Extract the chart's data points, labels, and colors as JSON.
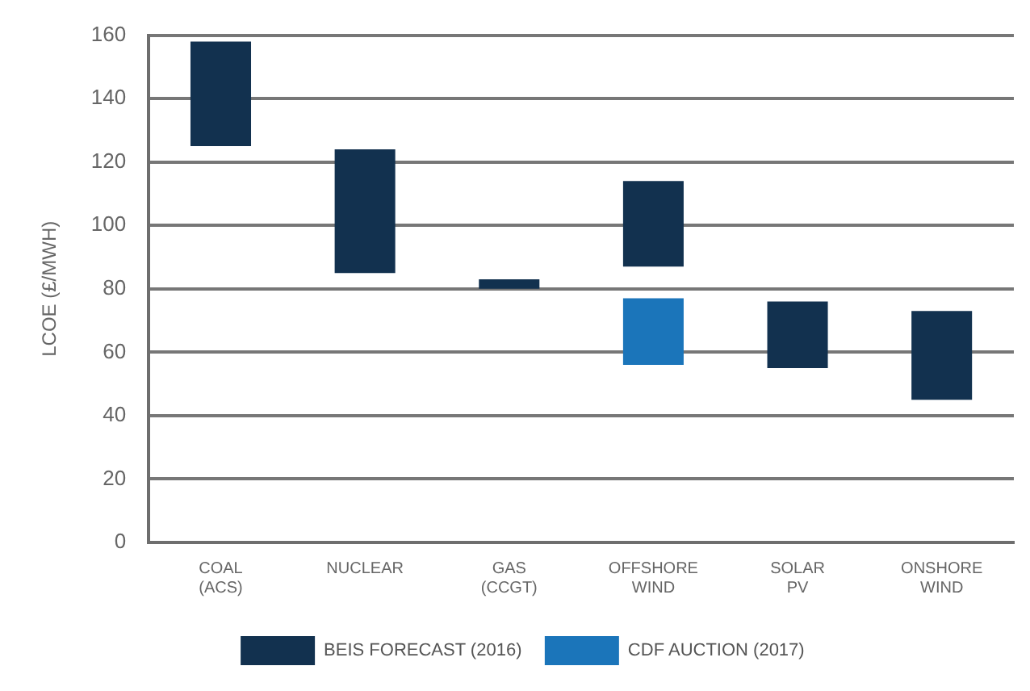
{
  "chart_data": {
    "type": "bar",
    "ylabel": "LCOE (£/MWH)",
    "categories": [
      "COAL (ACS)",
      "NUCLEAR",
      "GAS (CCGT)",
      "OFFSHORE WIND",
      "SOLAR PV",
      "ONSHORE WIND"
    ],
    "series": [
      {
        "name": "BEIS FORECAST (2016)",
        "color": "#12314f",
        "base": [
          125,
          85,
          80,
          87,
          55,
          45
        ],
        "values": [
          33,
          39,
          3,
          27,
          21,
          28
        ]
      },
      {
        "name": "CDF AUCTION (2017)",
        "color": "#1b75ba",
        "base": [
          null,
          null,
          null,
          56,
          null,
          null
        ],
        "values": [
          null,
          null,
          null,
          21,
          null,
          null
        ]
      }
    ],
    "ylim": [
      0,
      160
    ],
    "yticks": [
      0,
      20,
      40,
      60,
      80,
      100,
      120,
      140,
      160
    ],
    "grid": "y",
    "legend": "bottom"
  }
}
